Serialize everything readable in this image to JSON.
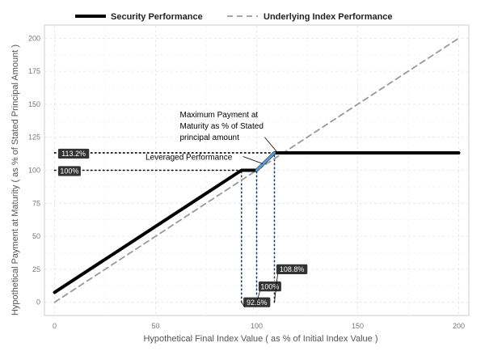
{
  "chart_data": {
    "type": "line",
    "xlabel": "Hypothetical Final Index Value ( as % of Initial Index Value )",
    "ylabel": "Hypothetical Payment at Maturity ( as % of Stated Principal Amount )",
    "xlim": [
      -5,
      205
    ],
    "ylim": [
      -10,
      210
    ],
    "x_ticks": [
      0,
      50,
      100,
      150,
      200
    ],
    "y_ticks": [
      0,
      25,
      50,
      75,
      100,
      125,
      150,
      175,
      200
    ],
    "grid": true,
    "legend_position": "top",
    "series": [
      {
        "name": "Security Performance",
        "style": "solid",
        "color": "#000000",
        "points": [
          [
            0,
            7.5
          ],
          [
            92.5,
            100
          ],
          [
            100,
            100
          ],
          [
            108.8,
            113.2
          ],
          [
            200,
            113.2
          ]
        ]
      },
      {
        "name": "Underlying Index Performance",
        "style": "dashed",
        "color": "#999999",
        "points": [
          [
            0,
            0
          ],
          [
            200,
            200
          ]
        ]
      }
    ],
    "highlight_segment": {
      "color": "#5b9bd5",
      "points": [
        [
          100,
          100
        ],
        [
          108.8,
          113.2
        ]
      ]
    },
    "reference_lines": [
      {
        "from": [
          0,
          113.2
        ],
        "to": [
          108.8,
          113.2
        ]
      },
      {
        "from": [
          0,
          100
        ],
        "to": [
          100,
          100
        ]
      },
      {
        "from": [
          92.5,
          0
        ],
        "to": [
          92.5,
          100
        ]
      },
      {
        "from": [
          100,
          0
        ],
        "to": [
          100,
          100
        ]
      },
      {
        "from": [
          108.8,
          0
        ],
        "to": [
          108.8,
          113.2
        ]
      }
    ],
    "y_badges": [
      {
        "label": "113.2%",
        "value": 113.2
      },
      {
        "label": "100%",
        "value": 100
      }
    ],
    "x_badges": [
      {
        "label": "92.5%",
        "value": 92.5,
        "level": 0
      },
      {
        "label": "100%",
        "value": 100,
        "level": 12
      },
      {
        "label": "108.8%",
        "value": 108.8,
        "level": 25
      }
    ],
    "annotations": [
      {
        "lines": [
          "Maximum Payment at",
          "Maturity as % of Stated",
          "principal amount"
        ],
        "at": [
          62,
          140
        ],
        "arrow_to": [
          110,
          114
        ]
      },
      {
        "lines": [
          "Leveraged Performance"
        ],
        "at": [
          45,
          108
        ],
        "arrow_to": [
          103,
          105
        ]
      }
    ]
  }
}
